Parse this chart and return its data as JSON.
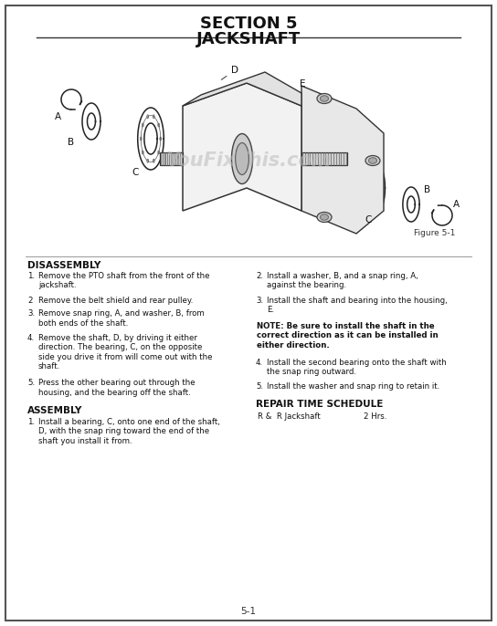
{
  "title_line": "SECTION 5",
  "title_line2": "JACKSHAFT",
  "bg_color": "#ffffff",
  "border_color": "#555555",
  "page_num": "5-1",
  "figure_label": "Figure 5-1",
  "watermark": "YouFixThis.com",
  "disassembly_title": "DISASSEMBLY",
  "assembly_title": "ASSEMBLY",
  "repair_title": "REPAIR TIME SCHEDULE",
  "dis_steps": [
    [
      "1.",
      "Remove the PTO shaft from the front of the\njackshaft."
    ],
    [
      "2",
      "Remove the belt shield and rear pulley."
    ],
    [
      "3.",
      "Remove snap ring, A, and washer, B, from\nboth ends of the shaft."
    ],
    [
      "4.",
      "Remove the shaft, D, by driving it either\ndirection. The bearing, C, on the opposite\nside you drive it from will come out with the\nshaft."
    ],
    [
      "5.",
      "Press the other bearing out through the\nhousing, and the bearing off the shaft."
    ]
  ],
  "asm_steps": [
    [
      "1.",
      "Install a bearing, C, onto one end of the shaft,\nD, with the snap ring toward the end of the\nshaft you install it from."
    ]
  ],
  "right_steps": [
    [
      "2.",
      "Install a washer, B, and a snap ring, A,\nagainst the bearing."
    ],
    [
      "3.",
      "Install the shaft and bearing into the housing,\nE."
    ]
  ],
  "note_text": "NOTE: Be sure to install the shaft in the\ncorrect direction as it can be installed in\neither direction.",
  "right_steps2": [
    [
      "4.",
      "Install the second bearing onto the shaft with\nthe snap ring outward."
    ],
    [
      "5.",
      "Install the washer and snap ring to retain it."
    ]
  ],
  "repair_row1": "R &  R Jackshaft",
  "repair_row2": "2 Hrs."
}
